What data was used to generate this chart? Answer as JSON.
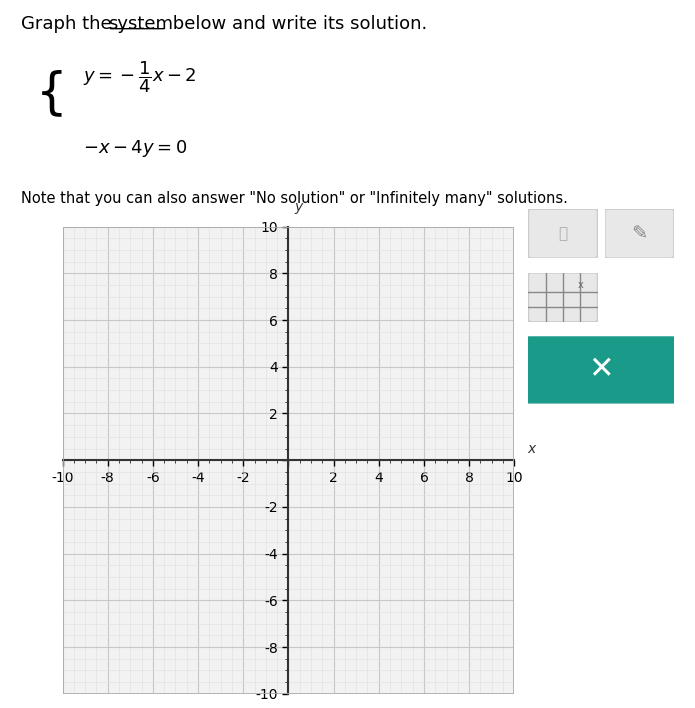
{
  "title_part1": "Graph the ",
  "title_system": "system",
  "title_part2": " below and write its solution.",
  "eq1": "$y = -\\dfrac{1}{4}x - 2$",
  "eq2": "$-x - 4y = 0$",
  "note": "Note that you can also answer \"No solution\" or \"Infinitely many\" solutions.",
  "xlim": [
    -10,
    10
  ],
  "ylim": [
    -10,
    10
  ],
  "xticks": [
    -10,
    -8,
    -6,
    -4,
    -2,
    0,
    2,
    4,
    6,
    8,
    10
  ],
  "yticks": [
    -10,
    -8,
    -6,
    -4,
    -2,
    0,
    2,
    4,
    6,
    8,
    10
  ],
  "grid_color": "#c8c8c8",
  "grid_minor_color": "#e0e0e0",
  "axis_color": "#333333",
  "plot_bg_color": "#f2f2f2",
  "tick_label_color": "#444444",
  "tick_fontsize": 9,
  "border_color": "#aaaaaa",
  "teal_color": "#1a9b8a"
}
